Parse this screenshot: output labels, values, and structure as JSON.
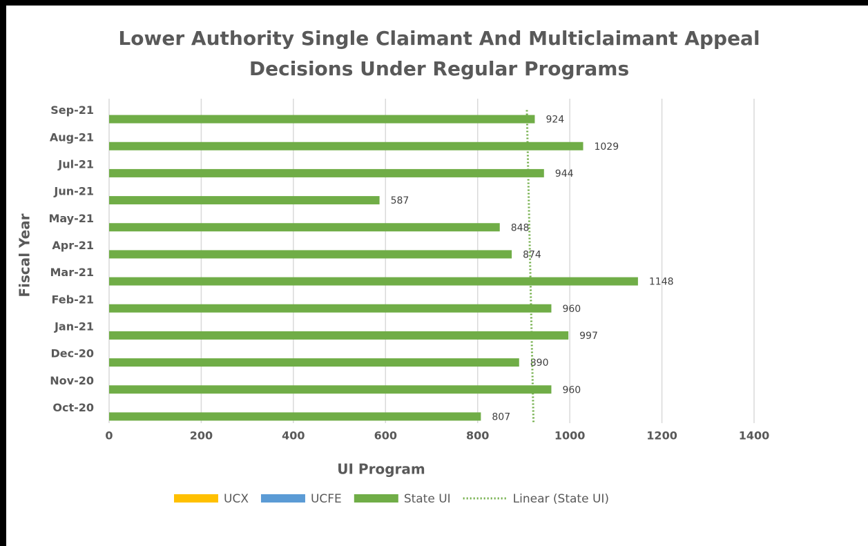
{
  "chart_data": {
    "type": "barh",
    "title": "Lower Authority Single Claimant And Multiclaimant Appeal Decisions Under Regular Programs",
    "xlabel": "UI Program",
    "ylabel": "Fiscal Year",
    "categories": [
      "Oct-20",
      "Nov-20",
      "Dec-20",
      "Jan-21",
      "Feb-21",
      "Mar-21",
      "Apr-21",
      "May-21",
      "Jun-21",
      "Jul-21",
      "Aug-21",
      "Sep-21"
    ],
    "series": [
      {
        "name": "UCX",
        "color": "#ffc000",
        "values": [
          0,
          0,
          0,
          0,
          0,
          0,
          0,
          0,
          0,
          0,
          0,
          0
        ]
      },
      {
        "name": "UCFE",
        "color": "#5b9bd5",
        "values": [
          0,
          0,
          0,
          0,
          0,
          0,
          0,
          0,
          0,
          0,
          0,
          0
        ]
      },
      {
        "name": "State UI",
        "color": "#70ad47",
        "values": [
          807,
          960,
          890,
          997,
          960,
          1148,
          874,
          848,
          587,
          944,
          1029,
          924
        ],
        "data_labels": true
      }
    ],
    "trendline": {
      "name": "Linear (State UI)",
      "series": 2,
      "color": "#70ad47"
    },
    "xlim": [
      0,
      1400
    ],
    "xticks": [
      0,
      200,
      400,
      600,
      800,
      1000,
      1200,
      1400
    ],
    "grid": true,
    "legend": "bottom"
  }
}
